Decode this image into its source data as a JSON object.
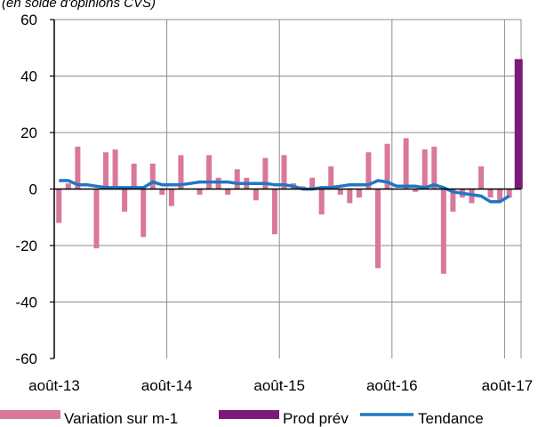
{
  "chart_data": {
    "type": "bar",
    "subtitle": "(en solde d'opinions CVS)",
    "ylim": [
      -60,
      60
    ],
    "yticks": [
      "60",
      "40",
      "20",
      "0",
      "-20",
      "-40",
      "-60"
    ],
    "ytick_values": [
      60,
      40,
      20,
      0,
      -20,
      -40,
      -60
    ],
    "xtick_labels": [
      "août-13",
      "août-14",
      "août-15",
      "août-16",
      "août-17"
    ],
    "grid": true,
    "legend_position": "bottom",
    "series": [
      {
        "name": "Variation sur m-1",
        "type": "bar",
        "color": "#d9779c",
        "values": [
          -12,
          2,
          15,
          0,
          -21,
          13,
          14,
          -8,
          9,
          -17,
          9,
          -2,
          -6,
          12,
          0,
          -2,
          12,
          4,
          -2,
          7,
          4,
          -4,
          11,
          -16,
          12,
          2,
          1,
          4,
          -9,
          8,
          -2,
          -5,
          -3,
          13,
          -28,
          16,
          0,
          18,
          -1,
          14,
          15,
          -30,
          -8,
          -3,
          -5,
          8,
          -3,
          -4,
          -3
        ]
      },
      {
        "name": "Prod prév",
        "type": "bar",
        "color": "#7b1a78",
        "values": [
          null,
          null,
          null,
          null,
          null,
          null,
          null,
          null,
          null,
          null,
          null,
          null,
          null,
          null,
          null,
          null,
          null,
          null,
          null,
          null,
          null,
          null,
          null,
          null,
          null,
          null,
          null,
          null,
          null,
          null,
          null,
          null,
          null,
          null,
          null,
          null,
          null,
          null,
          null,
          null,
          null,
          null,
          null,
          null,
          null,
          null,
          null,
          null,
          null,
          46
        ]
      },
      {
        "name": "Tendance",
        "type": "line",
        "color": "#1f77c4",
        "values": [
          3,
          3,
          1.5,
          1.5,
          1,
          0.5,
          0.5,
          0.5,
          0.5,
          0.5,
          2.5,
          1.5,
          1.5,
          1.5,
          2,
          2.5,
          2.5,
          2.5,
          2.5,
          2,
          2,
          2,
          2,
          1.5,
          1.5,
          1,
          0,
          0,
          0.5,
          0.5,
          1,
          1.5,
          1.5,
          1.5,
          3,
          2.5,
          1,
          1,
          1,
          0.5,
          1.5,
          0.5,
          -1,
          -1.5,
          -2,
          -2.5,
          -4.5,
          -4.5,
          -2.5
        ]
      }
    ]
  }
}
